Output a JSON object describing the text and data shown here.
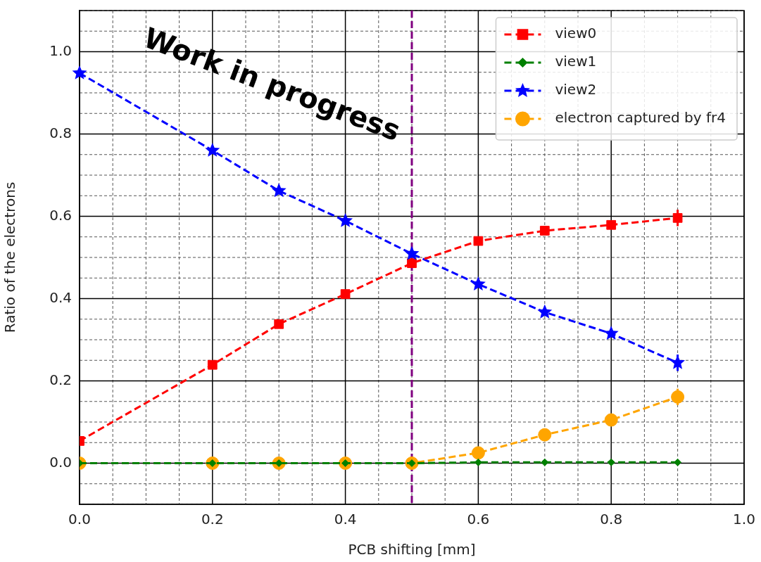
{
  "chart_data": {
    "type": "line",
    "xlabel": "PCB shifting [mm]",
    "ylabel": "Ratio of the electrons",
    "x": [
      0,
      0.2,
      0.3,
      0.4,
      0.5,
      0.6,
      0.7,
      0.8,
      0.9
    ],
    "series": [
      {
        "name": "view0",
        "color": "#ff0000",
        "marker": "square",
        "values": [
          0.054,
          0.239,
          0.338,
          0.411,
          0.486,
          0.54,
          0.565,
          0.579,
          0.596
        ],
        "errors": [
          null,
          null,
          null,
          null,
          null,
          null,
          null,
          null,
          0.02
        ]
      },
      {
        "name": "view1",
        "color": "#008000",
        "marker": "diamond",
        "values": [
          0,
          0,
          0,
          0,
          0,
          0.002,
          0.002,
          0.002,
          0.002
        ]
      },
      {
        "name": "view2",
        "color": "#0000ff",
        "marker": "star",
        "values": [
          0.948,
          0.76,
          0.662,
          0.589,
          0.509,
          0.435,
          0.367,
          0.315,
          0.244
        ],
        "errors": [
          null,
          null,
          null,
          null,
          null,
          null,
          null,
          null,
          0.02
        ]
      },
      {
        "name": "electron captured by fr4",
        "color": "#ffa500",
        "marker": "circle",
        "values": [
          0,
          0,
          0,
          0,
          0,
          0.025,
          0.069,
          0.105,
          0.161
        ],
        "errors": [
          null,
          null,
          null,
          null,
          null,
          null,
          null,
          null,
          0.02
        ]
      }
    ],
    "xlim": [
      0,
      1
    ],
    "ylim": [
      -0.1,
      1.1
    ],
    "xticks": [
      {
        "value": 0,
        "label": "0.0"
      },
      {
        "value": 0.05,
        "label": null
      },
      {
        "value": 0.1,
        "label": null
      },
      {
        "value": 0.15,
        "label": null
      },
      {
        "value": 0.2,
        "label": "0.2"
      },
      {
        "value": 0.25,
        "label": null
      },
      {
        "value": 0.3,
        "label": null
      },
      {
        "value": 0.35,
        "label": null
      },
      {
        "value": 0.4,
        "label": "0.4"
      },
      {
        "value": 0.45,
        "label": null
      },
      {
        "value": 0.5,
        "label": null
      },
      {
        "value": 0.55,
        "label": null
      },
      {
        "value": 0.6,
        "label": "0.6"
      },
      {
        "value": 0.65,
        "label": null
      },
      {
        "value": 0.7,
        "label": null
      },
      {
        "value": 0.75,
        "label": null
      },
      {
        "value": 0.8,
        "label": "0.8"
      },
      {
        "value": 0.85,
        "label": null
      },
      {
        "value": 0.9,
        "label": null
      },
      {
        "value": 0.95,
        "label": null
      },
      {
        "value": 1,
        "label": "1.0"
      }
    ],
    "yticks": [
      {
        "value": -0.1,
        "label": null
      },
      {
        "value": -0.05,
        "label": null
      },
      {
        "value": 0,
        "label": "0.0"
      },
      {
        "value": 0.05,
        "label": null
      },
      {
        "value": 0.1,
        "label": null
      },
      {
        "value": 0.15,
        "label": null
      },
      {
        "value": 0.2,
        "label": "0.2"
      },
      {
        "value": 0.25,
        "label": null
      },
      {
        "value": 0.3,
        "label": null
      },
      {
        "value": 0.35,
        "label": null
      },
      {
        "value": 0.4,
        "label": "0.4"
      },
      {
        "value": 0.45,
        "label": null
      },
      {
        "value": 0.5,
        "label": null
      },
      {
        "value": 0.55,
        "label": null
      },
      {
        "value": 0.6,
        "label": "0.6"
      },
      {
        "value": 0.65,
        "label": null
      },
      {
        "value": 0.7,
        "label": null
      },
      {
        "value": 0.75,
        "label": null
      },
      {
        "value": 0.8,
        "label": "0.8"
      },
      {
        "value": 0.85,
        "label": null
      },
      {
        "value": 0.9,
        "label": null
      },
      {
        "value": 0.95,
        "label": null
      },
      {
        "value": 1,
        "label": "1.0"
      },
      {
        "value": 1.05,
        "label": null
      },
      {
        "value": 1.1,
        "label": null
      }
    ],
    "ref_lines": [
      {
        "axis": "x",
        "value": 0.5,
        "color": "#800080",
        "line_style": "dashed"
      }
    ],
    "annotations": [
      "Work in progress"
    ],
    "grid": true,
    "legend": "top right",
    "line_style": "dashed"
  }
}
